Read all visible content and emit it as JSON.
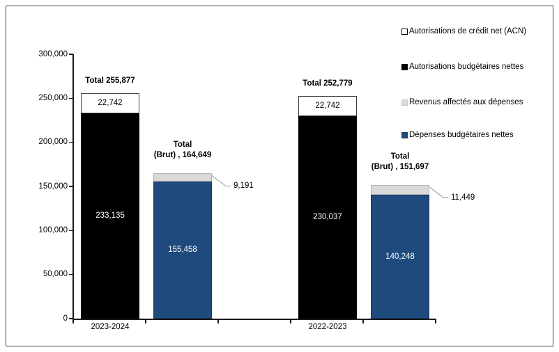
{
  "chart_data": {
    "type": "bar",
    "stacked": true,
    "title": "",
    "xlabel": "",
    "ylabel": "",
    "categories": [
      "2023-2024",
      "2022-2023"
    ],
    "ylim": [
      0,
      300000
    ],
    "ytick_values": [
      0,
      50000,
      100000,
      150000,
      200000,
      250000,
      300000
    ],
    "ytick_labels": [
      "0",
      "50,000",
      "100,000",
      "150,000",
      "200,000",
      "250,000",
      "300,000"
    ],
    "grid": false,
    "legend_position": "right",
    "series": [
      {
        "name": "Autorisations de crédit net (ACN)",
        "color": "#ffffff",
        "values": [
          22742,
          22742
        ]
      },
      {
        "name": "Autorisations budgétaires nettes",
        "color": "#000000",
        "values": [
          233135,
          230037
        ]
      },
      {
        "name": "Revenus affectés aux dépenses",
        "color": "#d9d9d9",
        "values": [
          9191,
          11449
        ]
      },
      {
        "name": "Dépenses budgétaires nettes",
        "color": "#1f4a7d",
        "values": [
          155458,
          140248
        ]
      }
    ],
    "totals": [
      {
        "group": "2023-2024",
        "label": "Total 255,877",
        "value": 255877
      },
      {
        "group": "2023-2024",
        "label": "Total (Brut) , 164,649",
        "value": 164649
      },
      {
        "group": "2022-2023",
        "label": "Total 252,779",
        "value": 252779
      },
      {
        "group": "2022-2023",
        "label": "Total (Brut) , 151,697",
        "value": 151697
      }
    ],
    "callout_labels": [
      "9,191",
      "11,449"
    ]
  },
  "colors": {
    "black_series": "#000000",
    "white_series": "#ffffff",
    "gray_series": "#d9d9d9",
    "blue_series": "#1f4a7d",
    "blue_border": "#17365d",
    "leader_line": "#a6a6a6",
    "axis": "#1a1a1a"
  },
  "bars": [
    {
      "slot": 0,
      "category": "2023-2024",
      "segments": [
        {
          "name": "Autorisations budgétaires nettes",
          "value": 233135,
          "label": "233,135",
          "fill": "#000000",
          "border": "#000000",
          "text_color": "#ffffff"
        },
        {
          "name": "Autorisations de crédit net (ACN)",
          "value": 22742,
          "label": "22,742",
          "fill": "#ffffff",
          "border": "#3f3f3f",
          "text_color": "#000000"
        }
      ],
      "total_lines": [
        "Total 255,877"
      ]
    },
    {
      "slot": 1,
      "category": "2023-2024",
      "segments": [
        {
          "name": "Dépenses budgétaires nettes",
          "value": 155458,
          "label": "155,458",
          "fill": "#1f4a7d",
          "border": "#17365d",
          "text_color": "#ffffff"
        },
        {
          "name": "Revenus affectés aux dépenses",
          "value": 9191,
          "label": "",
          "fill": "#d9d9d9",
          "border": "#b3b3b3",
          "text_color": "#000000"
        }
      ],
      "total_lines": [
        "Total",
        "(Brut) , 164,649"
      ],
      "callout": "9,191"
    },
    {
      "slot": 3,
      "category": "2022-2023",
      "segments": [
        {
          "name": "Autorisations budgétaires nettes",
          "value": 230037,
          "label": "230,037",
          "fill": "#000000",
          "border": "#000000",
          "text_color": "#ffffff"
        },
        {
          "name": "Autorisations de crédit net (ACN)",
          "value": 22742,
          "label": "22,742",
          "fill": "#ffffff",
          "border": "#3f3f3f",
          "text_color": "#000000"
        }
      ],
      "total_lines": [
        "Total 252,779"
      ]
    },
    {
      "slot": 4,
      "category": "2022-2023",
      "segments": [
        {
          "name": "Dépenses budgétaires nettes",
          "value": 140248,
          "label": "140,248",
          "fill": "#1f4a7d",
          "border": "#17365d",
          "text_color": "#ffffff"
        },
        {
          "name": "Revenus affectés aux dépenses",
          "value": 11449,
          "label": "",
          "fill": "#d9d9d9",
          "border": "#b3b3b3",
          "text_color": "#000000"
        }
      ],
      "total_lines": [
        "Total",
        "(Brut) , 151,697"
      ],
      "callout": "11,449"
    }
  ],
  "legend": {
    "items": [
      {
        "label": "Autorisations de crédit net (ACN)",
        "color": "#ffffff",
        "border": "#000000"
      },
      {
        "label": "Autorisations budgétaires nettes",
        "color": "#000000",
        "border": "#000000"
      },
      {
        "label": "Revenus affectés aux dépenses",
        "color": "#d9d9d9",
        "border": "#c6c6c6"
      },
      {
        "label": "Dépenses budgétaires nettes",
        "color": "#1f4a7d",
        "border": "#17365d"
      }
    ]
  }
}
